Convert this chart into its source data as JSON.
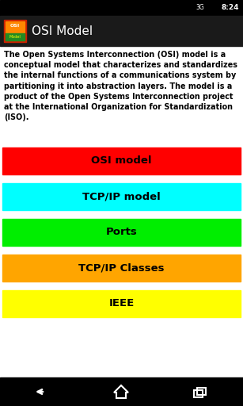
{
  "title": "OSI Model",
  "description": "The Open Systems Interconnection (OSI) model is a conceptual model that characterizes and standardizes the internal functions of a communications system by partitioning it into abstraction layers. The model is a product of the Open Systems Interconnection project at the International Organization for Standardization (ISO).",
  "buttons": [
    {
      "label": "OSI model",
      "color": "#FF0000"
    },
    {
      "label": "TCP/IP model",
      "color": "#00FFFF"
    },
    {
      "label": "Ports",
      "color": "#00EE00"
    },
    {
      "label": "TCP/IP Classes",
      "color": "#FFA500"
    },
    {
      "label": "IEEE",
      "color": "#FFFF00"
    }
  ],
  "bg_color": "#FFFFFF",
  "header_bg": "#1A1A1A",
  "header_text_color": "#FFFFFF",
  "body_text_color": "#000000",
  "button_text_color": "#000000",
  "nav_bar_color": "#000000",
  "status_bar_color": "#000000",
  "figsize": [
    3.07,
    5.12
  ],
  "dpi": 100
}
